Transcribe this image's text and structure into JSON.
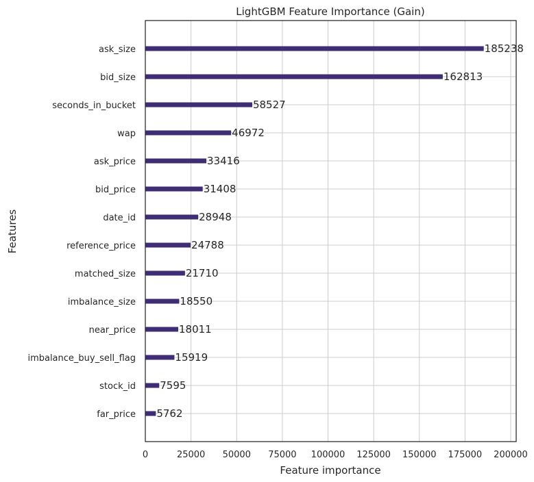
{
  "chart_data": {
    "type": "bar",
    "orientation": "horizontal",
    "title": "LightGBM Feature Importance (Gain)",
    "xlabel": "Feature importance",
    "ylabel": "Features",
    "xlim": [
      0,
      203000
    ],
    "grid": true,
    "bar_color": "#3f2d76",
    "categories": [
      "ask_size",
      "bid_size",
      "seconds_in_bucket",
      "wap",
      "ask_price",
      "bid_price",
      "date_id",
      "reference_price",
      "matched_size",
      "imbalance_size",
      "near_price",
      "imbalance_buy_sell_flag",
      "stock_id",
      "far_price"
    ],
    "values": [
      185238,
      162813,
      58527,
      46972,
      33416,
      31408,
      28948,
      24788,
      21710,
      18550,
      18011,
      15919,
      7595,
      5762
    ],
    "xticks": [
      0,
      25000,
      50000,
      75000,
      100000,
      125000,
      150000,
      175000,
      200000
    ],
    "xtick_labels": [
      "0",
      "25000",
      "50000",
      "75000",
      "100000",
      "125000",
      "150000",
      "175000",
      "200000"
    ]
  }
}
